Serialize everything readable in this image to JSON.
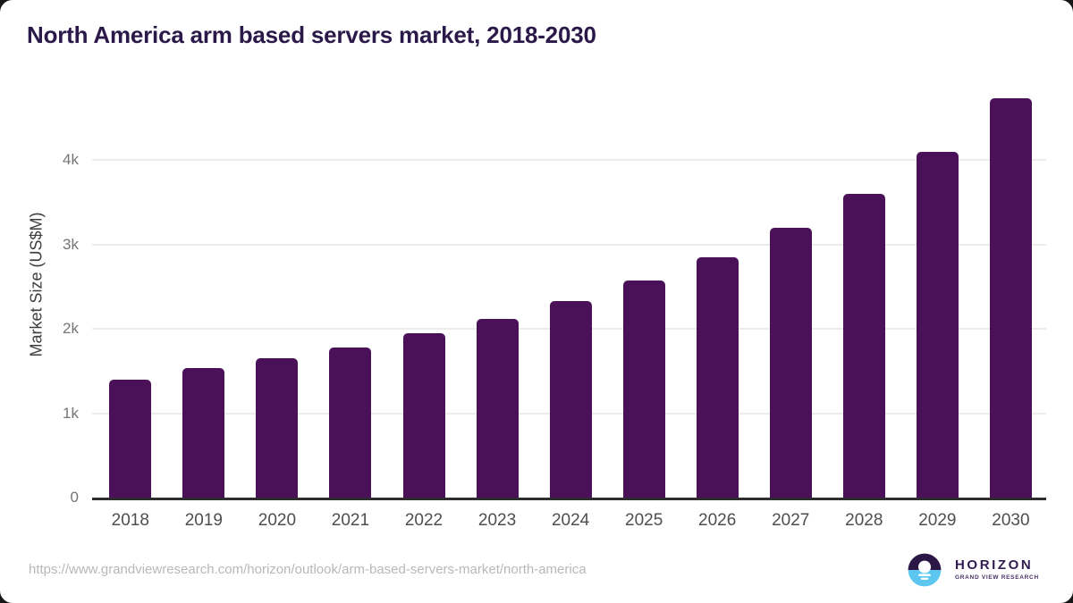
{
  "header": {
    "title": "North America arm based servers market, 2018-2030"
  },
  "chart_data": {
    "type": "bar",
    "title": "North America arm based servers market, 2018-2030",
    "xlabel": "",
    "ylabel": "Market Size (US$M)",
    "categories": [
      "2018",
      "2019",
      "2020",
      "2021",
      "2022",
      "2023",
      "2024",
      "2025",
      "2026",
      "2027",
      "2028",
      "2029",
      "2030"
    ],
    "values": [
      1400,
      1530,
      1650,
      1780,
      1950,
      2120,
      2330,
      2570,
      2850,
      3200,
      3600,
      4100,
      4730
    ],
    "ylim": [
      0,
      4850
    ],
    "yticks": [
      {
        "value": 0,
        "label": "0"
      },
      {
        "value": 1000,
        "label": "1k"
      },
      {
        "value": 2000,
        "label": "2k"
      },
      {
        "value": 3000,
        "label": "3k"
      },
      {
        "value": 4000,
        "label": "4k"
      }
    ],
    "grid": "horizontal",
    "legend": "none",
    "bar_color": "#4a1159",
    "gridline_color": "#ececec",
    "axis_line_color": "#2d2d2d",
    "title_color": "#2b1949",
    "tick_color": "#757575",
    "category_color": "#4e4e4e"
  },
  "footer": {
    "source_url": "https://www.grandviewresearch.com/horizon/outlook/arm-based-servers-market/north-america",
    "logo": {
      "brand": "HORIZON",
      "tagline": "GRAND VIEW RESEARCH",
      "circle_top_color": "#2b1745",
      "circle_bottom_color": "#5cc6f0"
    }
  }
}
